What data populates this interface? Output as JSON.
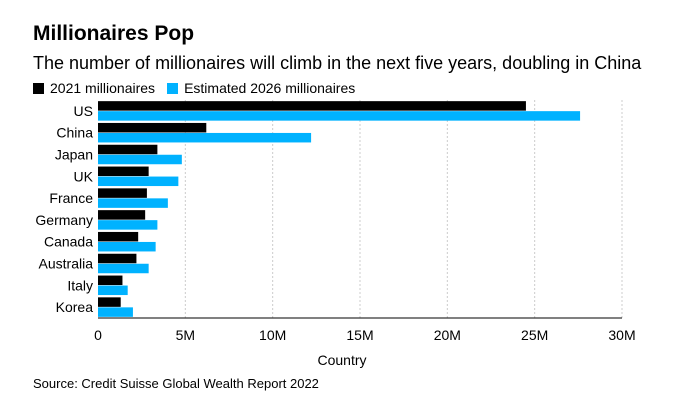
{
  "colors": {
    "series_2021": "#000000",
    "series_2026": "#00b2ff",
    "grid": "#cccccc",
    "axis": "#000000"
  },
  "chart_data": {
    "type": "bar",
    "orientation": "horizontal",
    "title": "Millionaires Pop",
    "subtitle": "The number of millionaires will climb in the next five years, doubling in China",
    "xlabel": "Country",
    "ylabel": "",
    "xlim": [
      0,
      30000000
    ],
    "x_ticks": [
      {
        "value": 0,
        "label": "0"
      },
      {
        "value": 5000000,
        "label": "5M"
      },
      {
        "value": 10000000,
        "label": "10M"
      },
      {
        "value": 15000000,
        "label": "15M"
      },
      {
        "value": 20000000,
        "label": "20M"
      },
      {
        "value": 25000000,
        "label": "25M"
      },
      {
        "value": 30000000,
        "label": "30M"
      }
    ],
    "grid": "vertical",
    "legend_position": "top-left",
    "categories": [
      "US",
      "China",
      "Japan",
      "UK",
      "France",
      "Germany",
      "Canada",
      "Australia",
      "Italy",
      "Korea"
    ],
    "series": [
      {
        "name": "2021 millionaires",
        "values": [
          24500000,
          6200000,
          3400000,
          2900000,
          2800000,
          2700000,
          2300000,
          2200000,
          1400000,
          1300000
        ]
      },
      {
        "name": "Estimated 2026 millionaires",
        "values": [
          27600000,
          12200000,
          4800000,
          4600000,
          4000000,
          3400000,
          3300000,
          2900000,
          1700000,
          2000000
        ]
      }
    ],
    "source": "Source: Credit Suisse Global Wealth Report 2022"
  }
}
